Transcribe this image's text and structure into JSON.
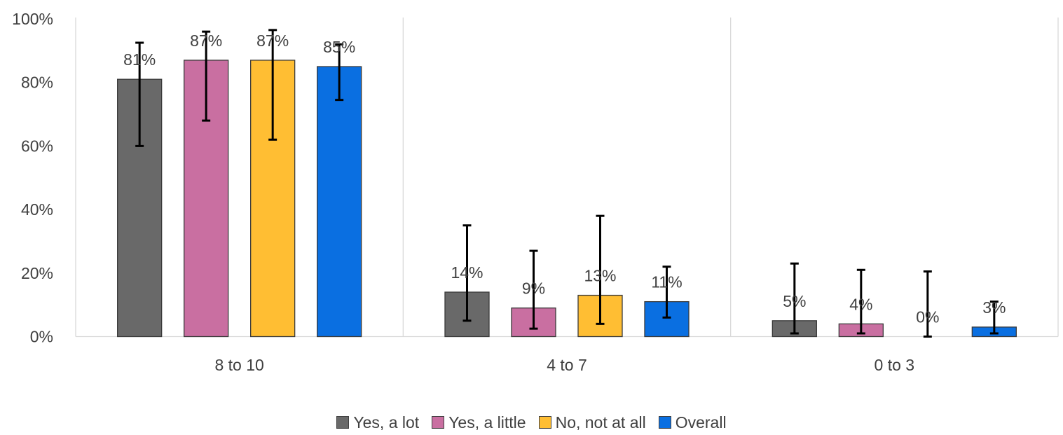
{
  "chart_data": {
    "type": "bar",
    "categories": [
      "8 to 10",
      "4 to 7",
      "0 to 3"
    ],
    "ylim": [
      0,
      100
    ],
    "yticks": [
      "0%",
      "20%",
      "40%",
      "60%",
      "80%",
      "100%"
    ],
    "ytick_values": [
      0,
      20,
      40,
      60,
      80,
      100
    ],
    "grid": "vertical separators",
    "legend_position": "bottom",
    "series": [
      {
        "name": "Yes, a lot",
        "color": "#696969",
        "values": [
          81,
          14,
          5
        ],
        "labels": [
          "81%",
          "14%",
          "5%"
        ],
        "err_low": [
          60,
          5,
          1
        ],
        "err_high": [
          92.5,
          35,
          23
        ]
      },
      {
        "name": "Yes, a little",
        "color": "#c96fa1",
        "values": [
          87,
          9,
          4
        ],
        "labels": [
          "87%",
          "9%",
          "4%"
        ],
        "err_low": [
          68,
          2.5,
          1
        ],
        "err_high": [
          96,
          27,
          21
        ]
      },
      {
        "name": "No, not at all",
        "color": "#ffbe33",
        "values": [
          87,
          13,
          0
        ],
        "labels": [
          "87%",
          "13%",
          "0%"
        ],
        "err_low": [
          62,
          4,
          0
        ],
        "err_high": [
          96.5,
          38,
          20.5
        ]
      },
      {
        "name": "Overall",
        "color": "#0a6fe1",
        "values": [
          85,
          11,
          3
        ],
        "labels": [
          "85%",
          "11%",
          "3%"
        ],
        "err_low": [
          74.5,
          6,
          1
        ],
        "err_high": [
          92,
          22,
          11
        ]
      }
    ]
  }
}
